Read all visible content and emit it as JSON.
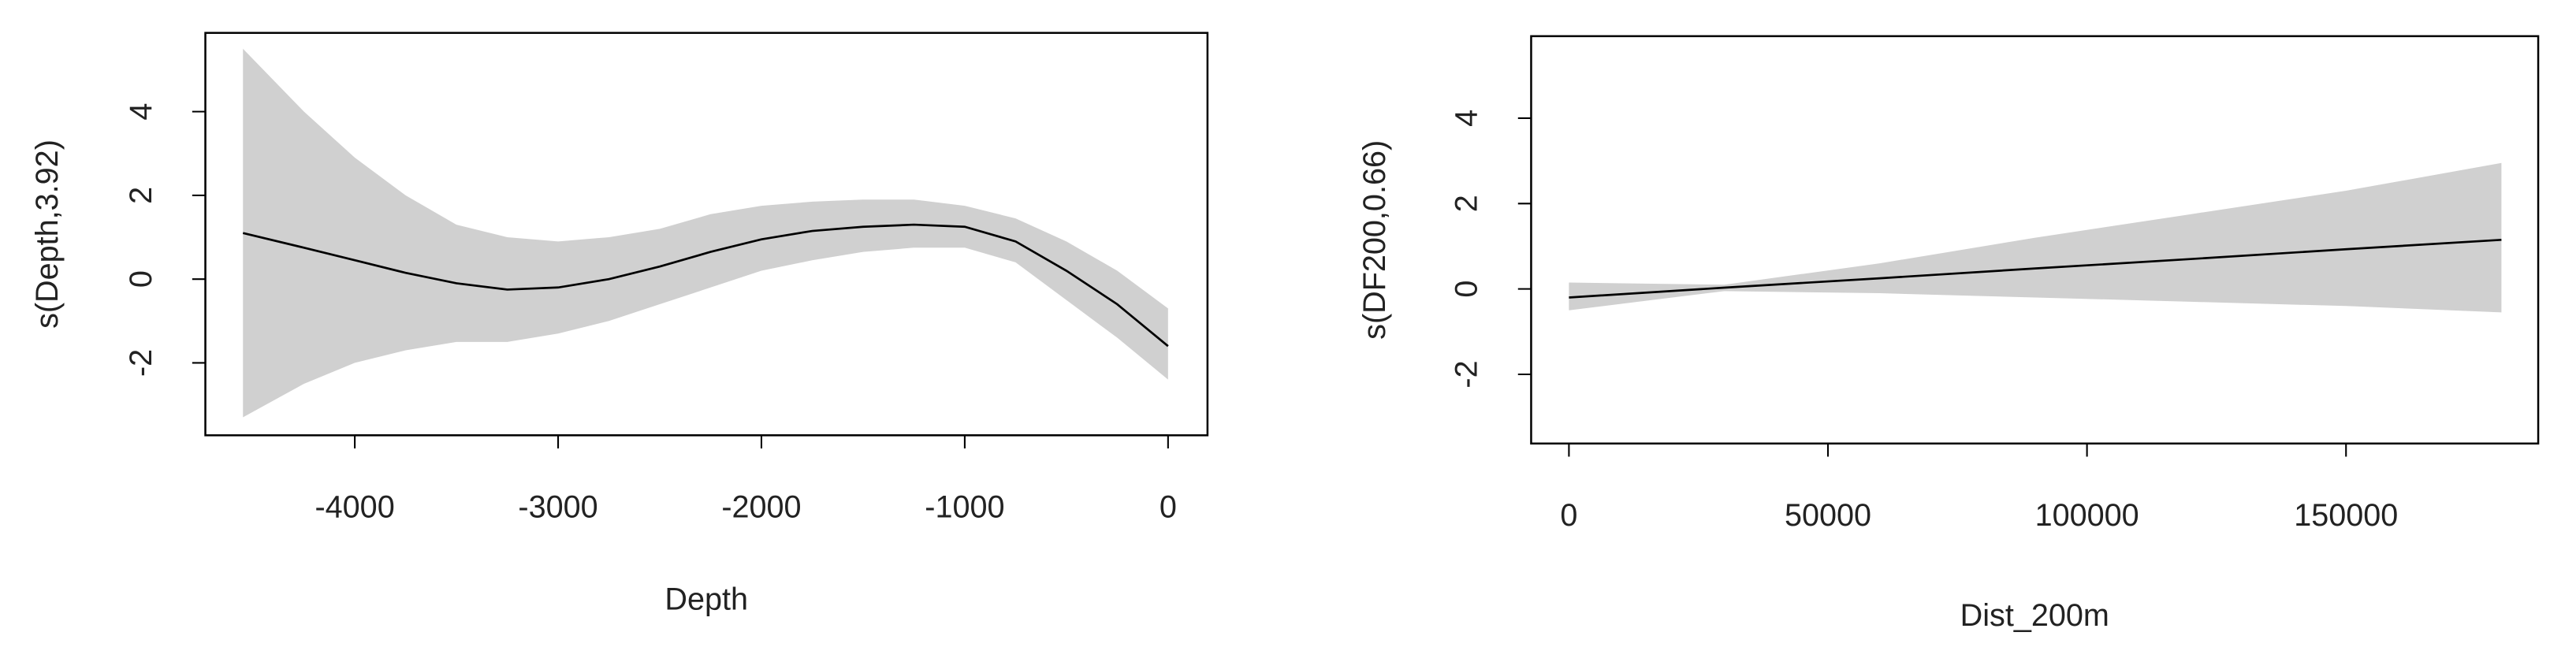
{
  "chart_data": [
    {
      "type": "line",
      "xlabel": "Depth",
      "ylabel": "s(Depth,3.92)",
      "x": [
        -4550,
        -4250,
        -4000,
        -3750,
        -3500,
        -3250,
        -3000,
        -2750,
        -2500,
        -2250,
        -2000,
        -1750,
        -1500,
        -1250,
        -1000,
        -750,
        -500,
        -250,
        0
      ],
      "values": [
        1.1,
        0.75,
        0.45,
        0.15,
        -0.1,
        -0.25,
        -0.2,
        0.0,
        0.3,
        0.65,
        0.95,
        1.15,
        1.25,
        1.3,
        1.25,
        0.9,
        0.2,
        -0.6,
        -1.6
      ],
      "upper": [
        5.5,
        4.0,
        2.9,
        2.0,
        1.3,
        1.0,
        0.9,
        1.0,
        1.2,
        1.55,
        1.75,
        1.85,
        1.9,
        1.9,
        1.75,
        1.45,
        0.9,
        0.2,
        -0.7
      ],
      "lower": [
        -3.3,
        -2.5,
        -2.0,
        -1.7,
        -1.5,
        -1.5,
        -1.3,
        -1.0,
        -0.6,
        -0.2,
        0.2,
        0.45,
        0.65,
        0.75,
        0.75,
        0.4,
        -0.5,
        -1.4,
        -2.4
      ],
      "color": "#000000",
      "band_color": "#d0d0d0",
      "xlim": [
        -4735,
        194
      ],
      "ylim": [
        -3.73,
        5.88
      ],
      "xticks": [
        -4000,
        -3000,
        -2000,
        -1000,
        0
      ],
      "yticks": [
        -2,
        0,
        2,
        4
      ]
    },
    {
      "type": "line",
      "xlabel": "Dist_200m",
      "ylabel": "s(DF200,0.66)",
      "x": [
        0,
        30000,
        60000,
        90000,
        120000,
        150000,
        180000
      ],
      "values": [
        -0.2,
        0.03,
        0.25,
        0.48,
        0.7,
        0.93,
        1.15
      ],
      "upper": [
        0.15,
        0.1,
        0.6,
        1.2,
        1.75,
        2.3,
        2.95
      ],
      "lower": [
        -0.5,
        -0.05,
        -0.1,
        -0.2,
        -0.3,
        -0.4,
        -0.55
      ],
      "color": "#000000",
      "band_color": "#d0d0d0",
      "xlim": [
        -7294,
        187100
      ],
      "ylim": [
        -3.62,
        5.92
      ],
      "xticks": [
        0,
        50000,
        100000,
        150000
      ],
      "yticks": [
        -2,
        0,
        2,
        4
      ]
    }
  ]
}
